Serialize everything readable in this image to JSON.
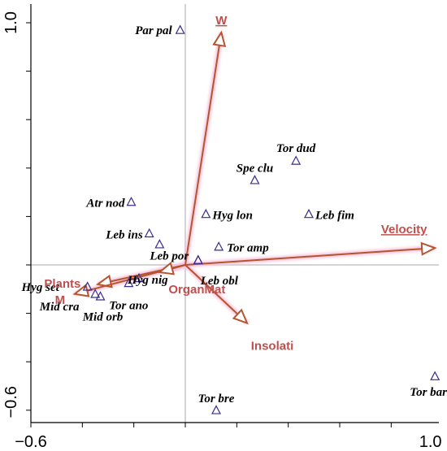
{
  "chart_data": {
    "type": "scatter",
    "title": "",
    "xlabel": "",
    "ylabel": "",
    "xlim": [
      -0.6,
      1.0
    ],
    "ylim": [
      -0.6,
      1.0
    ],
    "x_tick_labels": [
      "−0.6",
      "1.0"
    ],
    "y_tick_labels": [
      "1.0",
      "−0.6"
    ],
    "grid": false,
    "zero_lines": true,
    "colors": {
      "species_marker": "#3a2d8c",
      "arrow": "#b5552f",
      "env_label": "#c0504d",
      "halo": "#f7c4dd",
      "zero_line": "#aaaaaa"
    },
    "species": [
      {
        "label": "Par pal",
        "x": -0.02,
        "y": 0.97
      },
      {
        "label": "Tor dud",
        "x": 0.43,
        "y": 0.43
      },
      {
        "label": "Spe clu",
        "x": 0.27,
        "y": 0.35
      },
      {
        "label": "Atr nod",
        "x": -0.21,
        "y": 0.26
      },
      {
        "label": "Hyg lon",
        "x": 0.08,
        "y": 0.21
      },
      {
        "label": "Leb fim",
        "x": 0.48,
        "y": 0.21
      },
      {
        "label": "Leb ins",
        "x": -0.14,
        "y": 0.13
      },
      {
        "label": "Leb por",
        "x": -0.1,
        "y": 0.085
      },
      {
        "label": "Tor amp",
        "x": 0.13,
        "y": 0.075
      },
      {
        "label": "Hyg nig",
        "x": 0.05,
        "y": 0.02
      },
      {
        "label": "Leb obl",
        "x": 0.05,
        "y": 0.02
      },
      {
        "label": "Hyg set",
        "x": -0.38,
        "y": -0.09
      },
      {
        "label": "Mid cra",
        "x": -0.35,
        "y": -0.12
      },
      {
        "label": "Mid orb",
        "x": -0.33,
        "y": -0.13
      },
      {
        "label": "Tor ano",
        "x": -0.22,
        "y": -0.075
      },
      {
        "label": "",
        "x": -0.18,
        "y": -0.055
      },
      {
        "label": "Tor bre",
        "x": 0.12,
        "y": -0.6
      },
      {
        "label": "Tor bar",
        "x": 0.97,
        "y": -0.46
      }
    ],
    "env_vectors": [
      {
        "label": "W",
        "x": 0.14,
        "y": 0.96,
        "underline": true
      },
      {
        "label": "Velocity",
        "x": 0.97,
        "y": 0.07,
        "underline": true
      },
      {
        "label": "Plants",
        "x": -0.34,
        "y": -0.08
      },
      {
        "label": "M",
        "x": -0.43,
        "y": -0.12
      },
      {
        "label": "OrganMat",
        "x": -0.1,
        "y": -0.03
      },
      {
        "label": "Insolati",
        "x": 0.24,
        "y": -0.24
      }
    ]
  }
}
